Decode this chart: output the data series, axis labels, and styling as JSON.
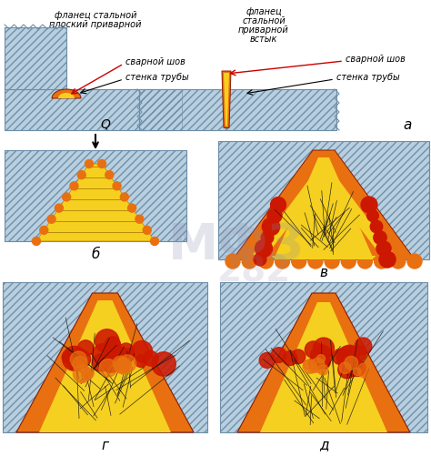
{
  "bg_color": "#ffffff",
  "steel_color": "#b8cfe0",
  "steel_edge_color": "#6a8aaa",
  "weld_yellow": "#f5d020",
  "weld_orange": "#e87010",
  "weld_red": "#cc1800",
  "weld_dark": "#8b1a00",
  "text_color": "#000000",
  "arrow_color": "#cc0000",
  "label_a": "а",
  "label_b": "б",
  "label_v": "в",
  "label_g": "г",
  "label_d": "д",
  "t1_l1": "фланец стальной",
  "t1_l2": "плоский приварной",
  "t1_svar": "сварной шов",
  "t1_stenka": "стенка трубы",
  "t2_flan1": "фланец",
  "t2_flan2": "стальной",
  "t2_flan3": "приварной",
  "t2_flan4": "встык",
  "t2_svar": "сварной шов",
  "t2_stenka": "стенка трубы",
  "arrow_Q": "Q",
  "watermark": "МФЗ",
  "watermark2": "282"
}
